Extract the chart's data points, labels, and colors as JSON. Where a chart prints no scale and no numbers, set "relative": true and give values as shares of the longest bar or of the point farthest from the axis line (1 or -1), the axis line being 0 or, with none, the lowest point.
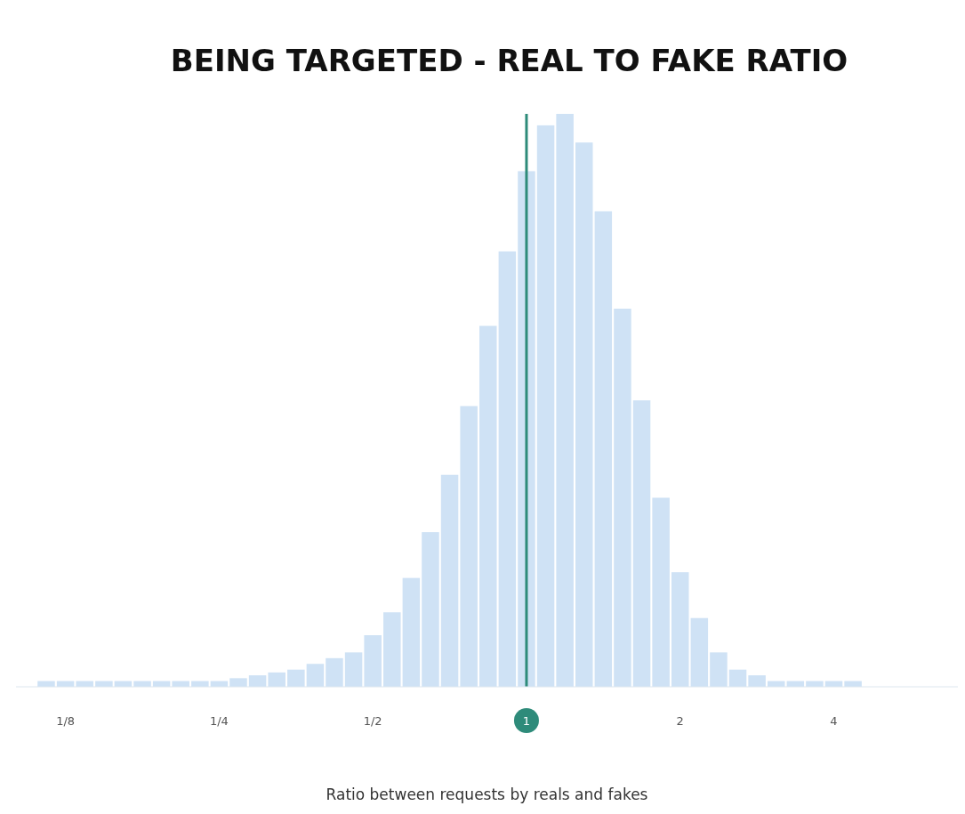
{
  "chart_data": {
    "type": "bar",
    "title": "BEING TARGETED - REAL TO FAKE RATIO",
    "xlabel": "Ratio between requests by reals and fakes",
    "relative": true,
    "log": "x",
    "color": "#cfe2f5",
    "x": [
      0.1146,
      0.125,
      0.1363,
      0.1487,
      0.1621,
      0.1768,
      0.1928,
      0.2102,
      0.2293,
      0.25,
      0.2726,
      0.2973,
      0.3242,
      0.3536,
      0.3856,
      0.4204,
      0.4585,
      0.5,
      0.5453,
      0.5946,
      0.6484,
      0.7071,
      0.7711,
      0.8409,
      0.917,
      1,
      1.0905,
      1.1892,
      1.2968,
      1.4142,
      1.5422,
      1.6818,
      1.834,
      2,
      2.181,
      2.3784,
      2.5937,
      2.8284,
      3.0844,
      3.3636,
      3.668,
      4,
      4.362
    ],
    "values": [
      0.01,
      0.01,
      0.01,
      0.01,
      0.01,
      0.01,
      0.01,
      0.01,
      0.01,
      0.01,
      0.015,
      0.02,
      0.025,
      0.03,
      0.04,
      0.05,
      0.06,
      0.09,
      0.13,
      0.19,
      0.27,
      0.37,
      0.49,
      0.63,
      0.76,
      0.9,
      0.98,
      1,
      0.95,
      0.83,
      0.66,
      0.5,
      0.33,
      0.2,
      0.12,
      0.06,
      0.03,
      0.02,
      0.01,
      0.01,
      0.01,
      0.01,
      0.01
    ],
    "xlim": [
      0.1,
      7
    ],
    "xticks": [
      {
        "value": 0.125,
        "label": "1/8"
      },
      {
        "value": 0.25,
        "label": "1/4"
      },
      {
        "value": 0.5,
        "label": "1/2"
      },
      {
        "value": 1,
        "label": "1"
      },
      {
        "value": 2,
        "label": "2"
      },
      {
        "value": 4,
        "label": "4"
      }
    ],
    "ref_lines": [
      {
        "axis": "x",
        "value": 1,
        "color": "#2e8b7a"
      }
    ]
  }
}
